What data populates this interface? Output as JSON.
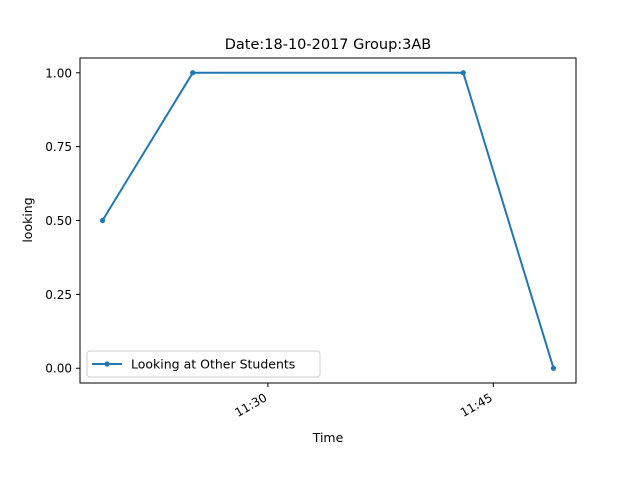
{
  "chart_data": {
    "type": "line",
    "title": "Date:18-10-2017  Group:3AB",
    "xlabel": "Time",
    "ylabel": "looking",
    "x_ticks": [
      "11:30",
      "11:45"
    ],
    "y_ticks": [
      "0.00",
      "0.25",
      "0.50",
      "0.75",
      "1.00"
    ],
    "ylim": [
      -0.05,
      1.05
    ],
    "grid": false,
    "legend_position": "lower-left",
    "series": [
      {
        "name": "Looking at Other Students",
        "color": "#1f77b4",
        "marker": "dot",
        "x": [
          "11:19",
          "11:25",
          "11:43",
          "11:49"
        ],
        "values": [
          0.5,
          1.0,
          1.0,
          0.0
        ]
      }
    ]
  }
}
